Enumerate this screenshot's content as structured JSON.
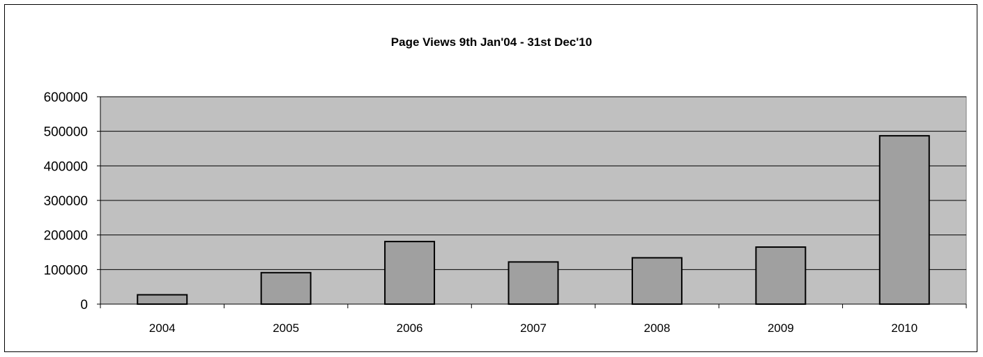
{
  "chart_data": {
    "type": "bar",
    "title": "Page Views 9th Jan'04 - 31st Dec'10",
    "xlabel": "",
    "ylabel": "",
    "categories": [
      "2004",
      "2005",
      "2006",
      "2007",
      "2008",
      "2009",
      "2010"
    ],
    "values": [
      27000,
      91000,
      181000,
      122000,
      134000,
      165000,
      487000
    ],
    "ylim": [
      0,
      600000
    ],
    "yticks": [
      "0",
      "100000",
      "200000",
      "300000",
      "400000",
      "500000",
      "600000"
    ],
    "grid": true,
    "legend": "none",
    "colors": {
      "plot_background": "#c0c0c0",
      "bar_fill": "#a0a0a0",
      "bar_stroke": "#000000",
      "grid": "#000000"
    }
  }
}
